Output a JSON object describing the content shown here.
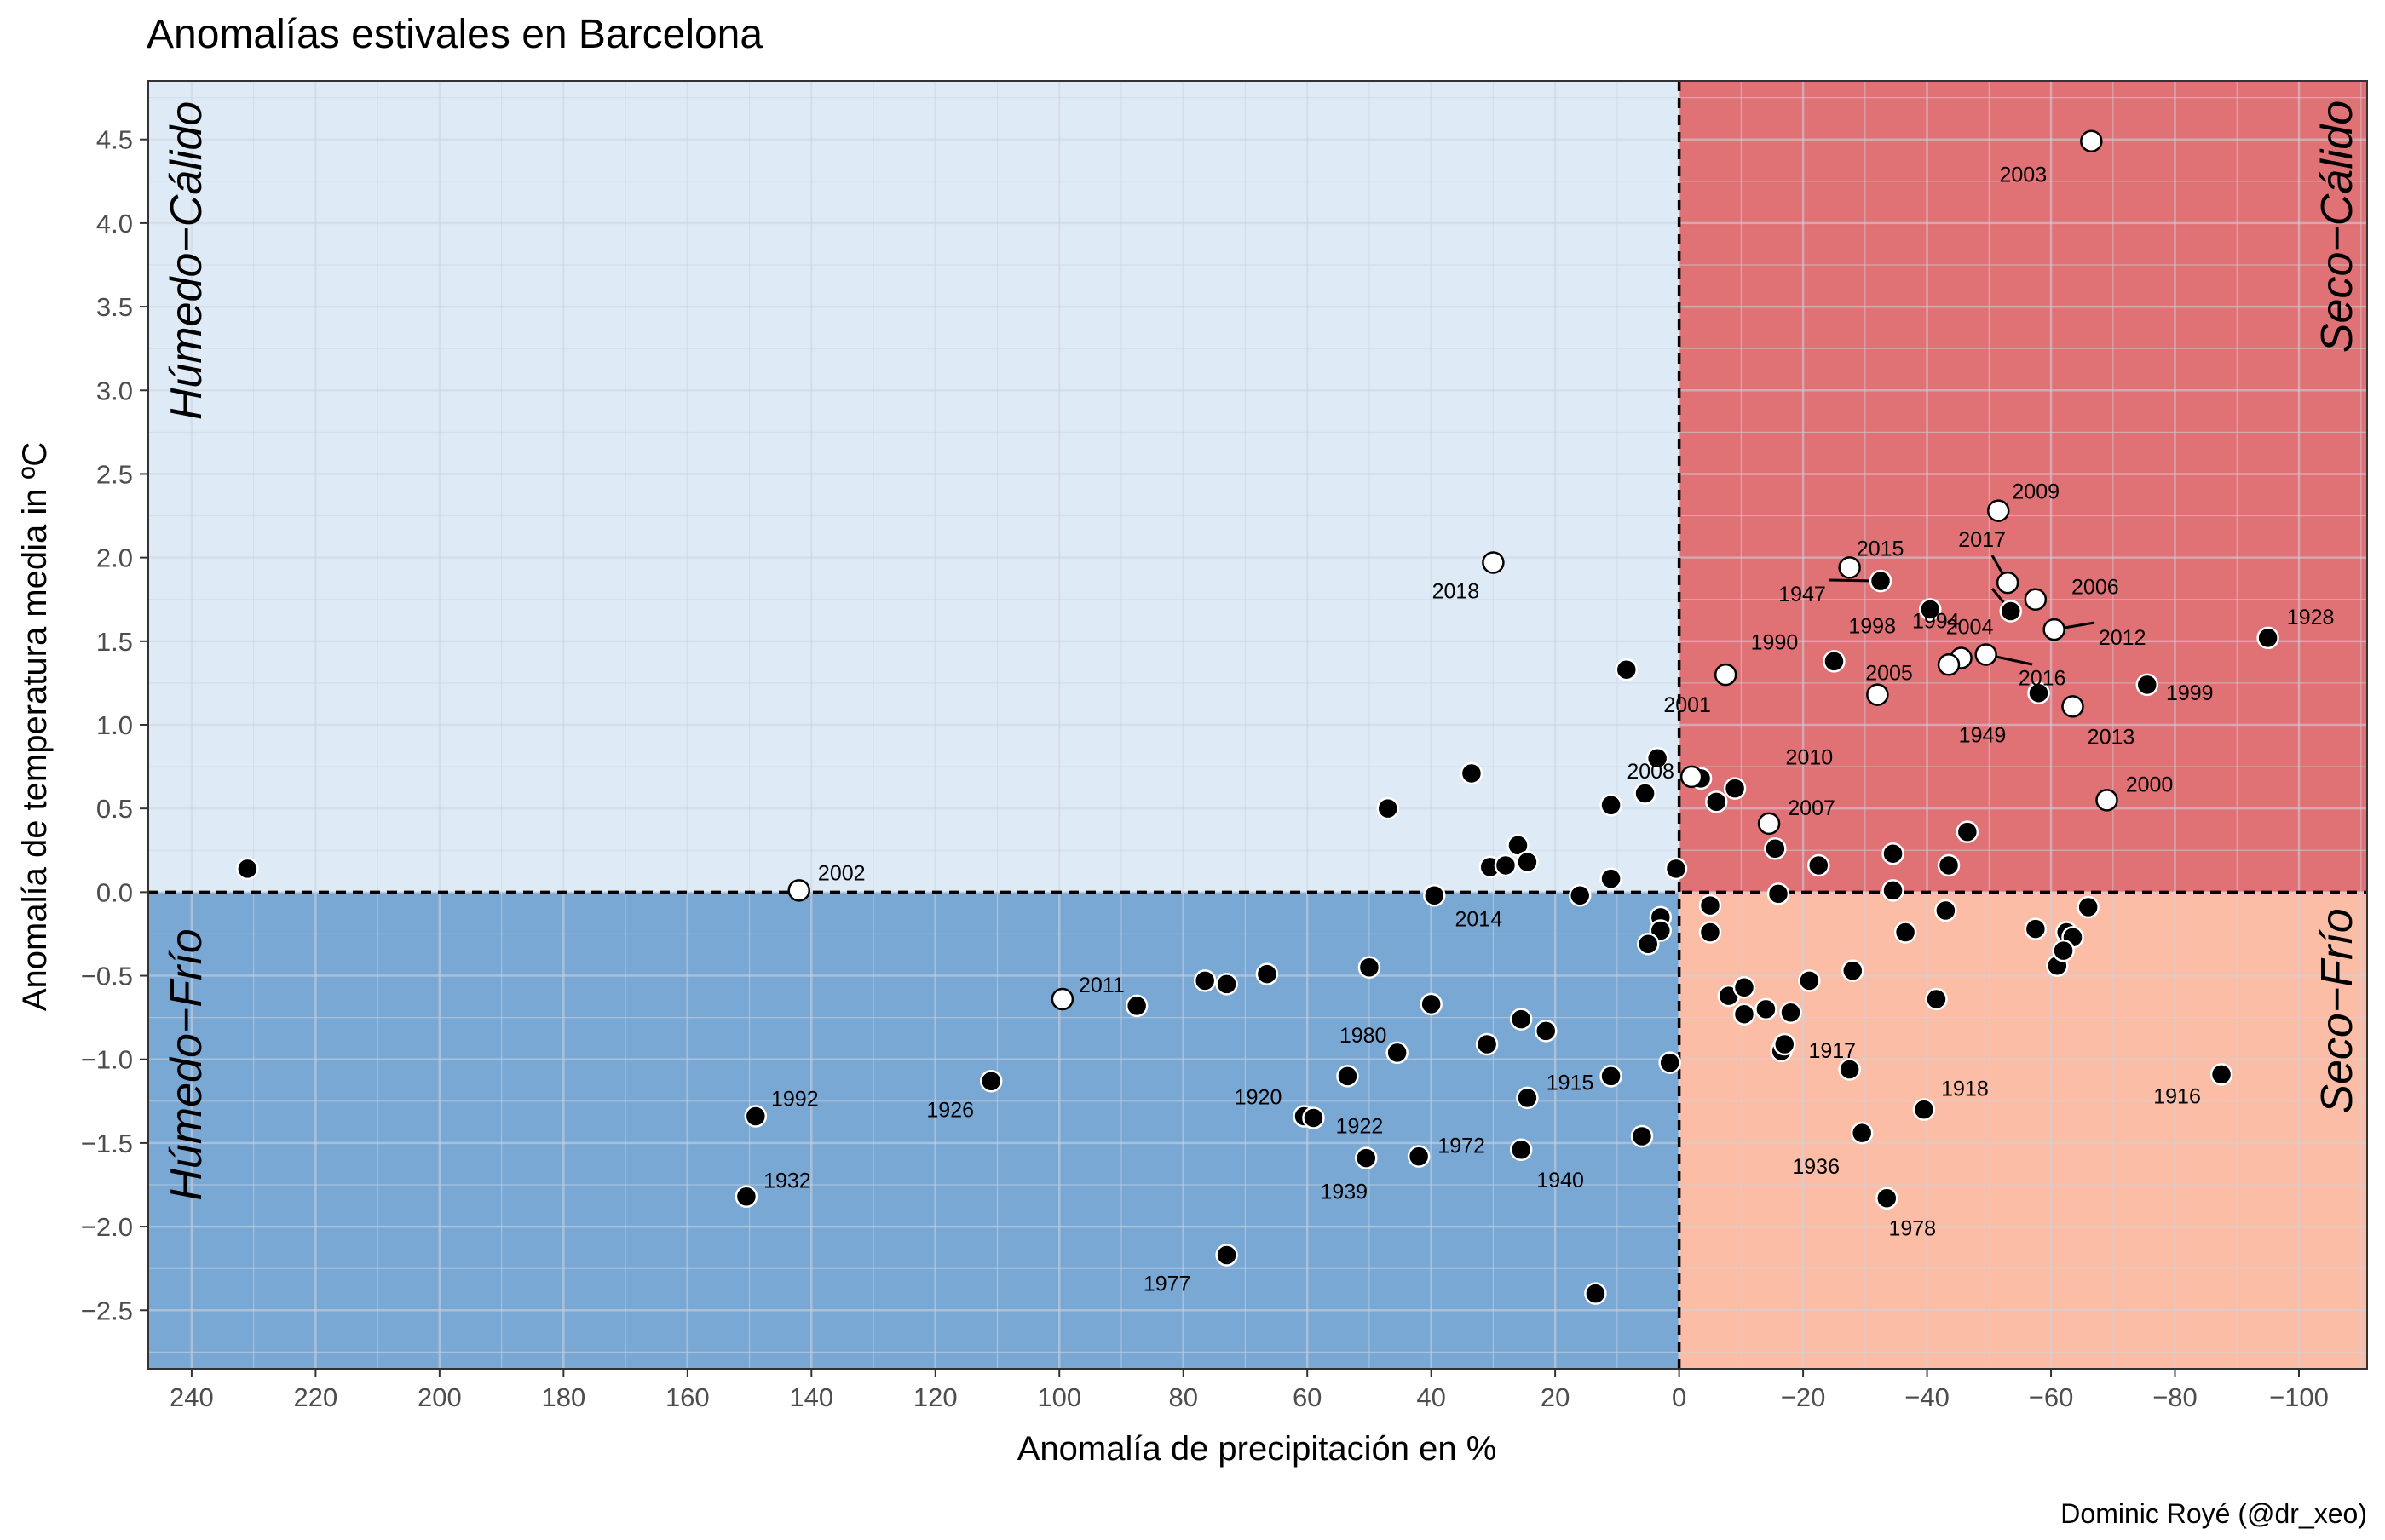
{
  "chart_data": {
    "type": "scatter",
    "title": "Anomalías estivales en Barcelona",
    "xlabel": "Anomalía de precipitación en %",
    "ylabel": "Anomalía de temperatura media in ºC",
    "caption": "Dominic Royé (@dr_xeo)",
    "x_reversed": true,
    "xlim": [
      247,
      -111
    ],
    "ylim": [
      -2.85,
      4.85
    ],
    "x_ticks": [
      240,
      220,
      200,
      180,
      160,
      140,
      120,
      100,
      80,
      60,
      40,
      20,
      0,
      -20,
      -40,
      -60,
      -80,
      -100
    ],
    "x_tick_labels": [
      "240",
      "220",
      "200",
      "180",
      "160",
      "140",
      "120",
      "100",
      "80",
      "60",
      "40",
      "20",
      "0",
      "−20",
      "−40",
      "−60",
      "−80",
      "−100"
    ],
    "y_ticks": [
      -2.5,
      -2.0,
      -1.5,
      -1.0,
      -0.5,
      0.0,
      0.5,
      1.0,
      1.5,
      2.0,
      2.5,
      3.0,
      3.5,
      4.0,
      4.5
    ],
    "y_tick_labels": [
      "−2.5",
      "−2.0",
      "−1.5",
      "−1.0",
      "−0.5",
      "0.0",
      "0.5",
      "1.0",
      "1.5",
      "2.0",
      "2.5",
      "3.0",
      "3.5",
      "4.0",
      "4.5"
    ],
    "grid": true,
    "quadrants": [
      {
        "name": "Húmedo−Cálido",
        "color": "#deebf7",
        "region": "top-left"
      },
      {
        "name": "Seco−Cálido",
        "color": "#e07175",
        "region": "top-right"
      },
      {
        "name": "Húmedo−Frío",
        "color": "#7aa8d4",
        "region": "bottom-left"
      },
      {
        "name": "Seco−Frío",
        "color": "#fbbda5",
        "region": "bottom-right"
      }
    ],
    "labeled_points": [
      {
        "year": "2003",
        "x": -66.5,
        "y": 4.49,
        "open": true
      },
      {
        "year": "2009",
        "x": -51.5,
        "y": 2.28,
        "open": true
      },
      {
        "year": "2015",
        "x": -27.5,
        "y": 1.94,
        "open": true
      },
      {
        "year": "2017",
        "x": -53.0,
        "y": 1.85,
        "open": true
      },
      {
        "year": "1947",
        "x": -32.5,
        "y": 1.86,
        "open": false
      },
      {
        "year": "1994",
        "x": -53.5,
        "y": 1.68,
        "open": false
      },
      {
        "year": "2006",
        "x": -57.5,
        "y": 1.75,
        "open": true
      },
      {
        "year": "2012",
        "x": -60.5,
        "y": 1.57,
        "open": true
      },
      {
        "year": "1928",
        "x": -95.0,
        "y": 1.52,
        "open": false
      },
      {
        "year": "1998",
        "x": -40.5,
        "y": 1.69,
        "open": false
      },
      {
        "year": "1990",
        "x": -25.0,
        "y": 1.38,
        "open": false
      },
      {
        "year": "2004",
        "x": -45.5,
        "y": 1.4,
        "open": true
      },
      {
        "year": "2005",
        "x": -43.5,
        "y": 1.36,
        "open": true
      },
      {
        "year": "2016",
        "x": -49.5,
        "y": 1.42,
        "open": true
      },
      {
        "year": "1999",
        "x": -75.5,
        "y": 1.24,
        "open": false
      },
      {
        "year": "2001",
        "x": -7.5,
        "y": 1.3,
        "open": true
      },
      {
        "year": "2010",
        "x": -32.0,
        "y": 1.18,
        "open": true
      },
      {
        "year": "1949",
        "x": -58.0,
        "y": 1.19,
        "open": false
      },
      {
        "year": "2013",
        "x": -63.5,
        "y": 1.11,
        "open": true
      },
      {
        "year": "2000",
        "x": -69.0,
        "y": 0.55,
        "open": true
      },
      {
        "year": "2007",
        "x": -14.5,
        "y": 0.41,
        "open": true
      },
      {
        "year": "2008",
        "x": -2.0,
        "y": 0.69,
        "open": true
      },
      {
        "year": "2018",
        "x": 30.0,
        "y": 1.97,
        "open": true
      },
      {
        "year": "2002",
        "x": 142.0,
        "y": 0.01,
        "open": true
      },
      {
        "year": "2014",
        "x": 39.5,
        "y": -0.02,
        "open": false
      },
      {
        "year": "2011",
        "x": 99.5,
        "y": -0.64,
        "open": true
      },
      {
        "year": "1992",
        "x": 149.0,
        "y": -1.34,
        "open": false
      },
      {
        "year": "1932",
        "x": 150.5,
        "y": -1.82,
        "open": false
      },
      {
        "year": "1926",
        "x": 111.0,
        "y": -1.13,
        "open": false
      },
      {
        "year": "1977",
        "x": 73.0,
        "y": -2.17,
        "open": false
      },
      {
        "year": "1980",
        "x": 45.5,
        "y": -0.96,
        "open": false
      },
      {
        "year": "1920",
        "x": 60.5,
        "y": -1.34,
        "open": false
      },
      {
        "year": "1922",
        "x": 59.0,
        "y": -1.35,
        "open": false
      },
      {
        "year": "1939",
        "x": 50.5,
        "y": -1.59,
        "open": false
      },
      {
        "year": "1972",
        "x": 42.0,
        "y": -1.58,
        "open": false
      },
      {
        "year": "1940",
        "x": 25.5,
        "y": -1.54,
        "open": false
      },
      {
        "year": "1915",
        "x": 11.0,
        "y": -1.1,
        "open": false
      },
      {
        "year": "1917",
        "x": -17.0,
        "y": -0.91,
        "open": false
      },
      {
        "year": "1918",
        "x": -39.5,
        "y": -1.3,
        "open": false
      },
      {
        "year": "1936",
        "x": -29.5,
        "y": -1.44,
        "open": false
      },
      {
        "year": "1978",
        "x": -33.5,
        "y": -1.83,
        "open": false
      },
      {
        "year": "1916",
        "x": -87.5,
        "y": -1.09,
        "open": false
      }
    ],
    "unlabeled_points": [
      {
        "x": 231.0,
        "y": 0.14
      },
      {
        "x": 33.5,
        "y": 0.71
      },
      {
        "x": 47.0,
        "y": 0.5
      },
      {
        "x": 8.5,
        "y": 1.33
      },
      {
        "x": 3.5,
        "y": 0.8
      },
      {
        "x": 5.5,
        "y": 0.59
      },
      {
        "x": 11.0,
        "y": 0.52
      },
      {
        "x": 26.0,
        "y": 0.28
      },
      {
        "x": 24.5,
        "y": 0.18
      },
      {
        "x": 30.5,
        "y": 0.15
      },
      {
        "x": 28.0,
        "y": 0.16
      },
      {
        "x": 11.0,
        "y": 0.08
      },
      {
        "x": 0.5,
        "y": 0.14
      },
      {
        "x": 16.0,
        "y": -0.02
      },
      {
        "x": -3.5,
        "y": 0.68
      },
      {
        "x": -6.0,
        "y": 0.54
      },
      {
        "x": -9.0,
        "y": 0.62
      },
      {
        "x": -15.5,
        "y": 0.26
      },
      {
        "x": -22.5,
        "y": 0.16
      },
      {
        "x": -34.5,
        "y": 0.23
      },
      {
        "x": -43.5,
        "y": 0.16
      },
      {
        "x": -46.5,
        "y": 0.36
      },
      {
        "x": -16.0,
        "y": -0.01
      },
      {
        "x": -34.5,
        "y": 0.01
      },
      {
        "x": -5.0,
        "y": -0.08
      },
      {
        "x": -5.0,
        "y": -0.24
      },
      {
        "x": 3.0,
        "y": -0.15
      },
      {
        "x": 3.0,
        "y": -0.23
      },
      {
        "x": 5.0,
        "y": -0.31
      },
      {
        "x": -36.5,
        "y": -0.24
      },
      {
        "x": -43.0,
        "y": -0.11
      },
      {
        "x": -57.5,
        "y": -0.22
      },
      {
        "x": -62.5,
        "y": -0.24
      },
      {
        "x": -63.5,
        "y": -0.27
      },
      {
        "x": -66.0,
        "y": -0.09
      },
      {
        "x": -61.0,
        "y": -0.44
      },
      {
        "x": -62.0,
        "y": -0.35
      },
      {
        "x": -28.0,
        "y": -0.47
      },
      {
        "x": -21.0,
        "y": -0.53
      },
      {
        "x": -41.5,
        "y": -0.64
      },
      {
        "x": -8.0,
        "y": -0.62
      },
      {
        "x": -10.5,
        "y": -0.57
      },
      {
        "x": -10.5,
        "y": -0.73
      },
      {
        "x": -14.0,
        "y": -0.7
      },
      {
        "x": -18.0,
        "y": -0.72
      },
      {
        "x": -16.5,
        "y": -0.95
      },
      {
        "x": -27.5,
        "y": -1.06
      },
      {
        "x": 50.0,
        "y": -0.45
      },
      {
        "x": 66.5,
        "y": -0.49
      },
      {
        "x": 73.0,
        "y": -0.55
      },
      {
        "x": 76.5,
        "y": -0.53
      },
      {
        "x": 87.5,
        "y": -0.68
      },
      {
        "x": 40.0,
        "y": -0.67
      },
      {
        "x": 31.0,
        "y": -0.91
      },
      {
        "x": 25.5,
        "y": -0.76
      },
      {
        "x": 21.5,
        "y": -0.83
      },
      {
        "x": 24.5,
        "y": -1.23
      },
      {
        "x": 53.5,
        "y": -1.1
      },
      {
        "x": 1.5,
        "y": -1.02
      },
      {
        "x": 6.0,
        "y": -1.46
      },
      {
        "x": 13.5,
        "y": -2.4
      }
    ]
  }
}
